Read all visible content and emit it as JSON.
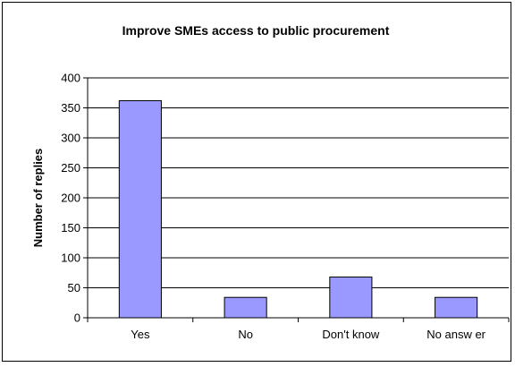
{
  "chart_data": {
    "type": "bar",
    "title": "Improve SMEs access to public procurement",
    "xlabel": "",
    "ylabel": "Number of replies",
    "categories": [
      "Yes",
      "No",
      "Don't know",
      "No answ er"
    ],
    "values": [
      362,
      34,
      68,
      34
    ],
    "ylim": [
      0,
      400
    ],
    "yticks": [
      0,
      50,
      100,
      150,
      200,
      250,
      300,
      350,
      400
    ],
    "grid": true,
    "legend": "none"
  },
  "colors": {
    "bar_fill": "#9999ff",
    "bar_stroke": "#000000",
    "gridline": "#000000",
    "frame": "#000000",
    "background": "#ffffff"
  }
}
